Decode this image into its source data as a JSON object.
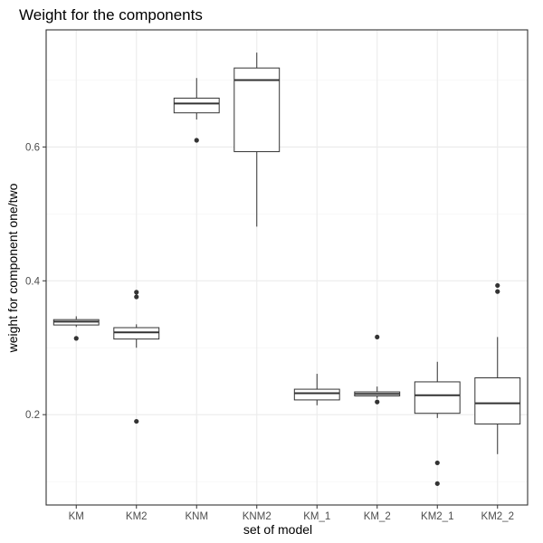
{
  "chart_data": {
    "type": "boxplot",
    "title": "Weight for the components",
    "xlabel": "set of model",
    "ylabel": "weight for component one/two",
    "ylim": [
      0.065,
      0.775
    ],
    "y_ticks": [
      0.2,
      0.4,
      0.6
    ],
    "y_tick_labels": [
      "0.2",
      "0.4",
      "0.6"
    ],
    "grid": true,
    "categories": [
      "KM",
      "KM2",
      "KNM",
      "KNM2",
      "KM_1",
      "KM_2",
      "KM2_1",
      "KM2_2"
    ],
    "boxes": [
      {
        "category": "KM",
        "min": 0.331,
        "q1": 0.334,
        "median": 0.339,
        "q3": 0.342,
        "max": 0.347,
        "outliers": [
          0.314
        ]
      },
      {
        "category": "KM2",
        "min": 0.3,
        "q1": 0.313,
        "median": 0.323,
        "q3": 0.33,
        "max": 0.335,
        "outliers": [
          0.383,
          0.376,
          0.19
        ]
      },
      {
        "category": "KNM",
        "min": 0.641,
        "q1": 0.651,
        "median": 0.665,
        "q3": 0.673,
        "max": 0.703,
        "outliers": [
          0.61
        ]
      },
      {
        "category": "KNM2",
        "min": 0.481,
        "q1": 0.593,
        "median": 0.7,
        "q3": 0.718,
        "max": 0.741,
        "outliers": []
      },
      {
        "category": "KM_1",
        "min": 0.214,
        "q1": 0.222,
        "median": 0.232,
        "q3": 0.238,
        "max": 0.261,
        "outliers": []
      },
      {
        "category": "KM_2",
        "min": 0.224,
        "q1": 0.228,
        "median": 0.231,
        "q3": 0.234,
        "max": 0.242,
        "outliers": [
          0.316,
          0.219
        ]
      },
      {
        "category": "KM2_1",
        "min": 0.195,
        "q1": 0.202,
        "median": 0.229,
        "q3": 0.249,
        "max": 0.279,
        "outliers": [
          0.128,
          0.097
        ]
      },
      {
        "category": "KM2_2",
        "min": 0.141,
        "q1": 0.186,
        "median": 0.217,
        "q3": 0.255,
        "max": 0.316,
        "outliers": [
          0.393,
          0.384
        ]
      }
    ]
  }
}
